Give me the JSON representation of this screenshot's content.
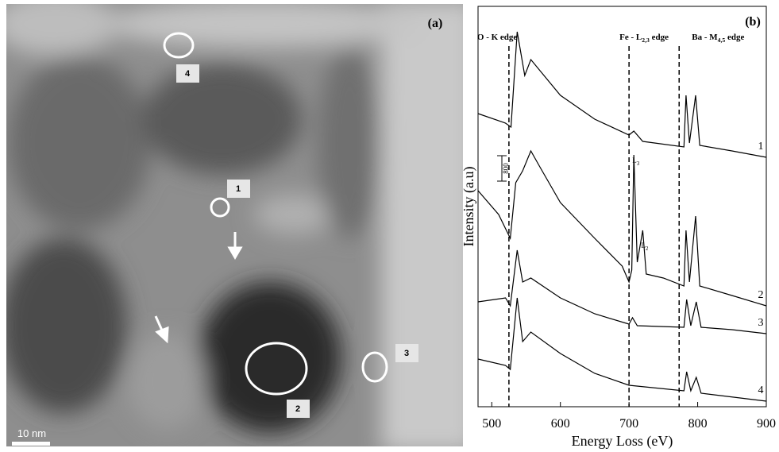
{
  "image_panel": {
    "label": "(a)",
    "markers": [
      "1",
      "2",
      "3",
      "4"
    ],
    "scale_bar_label": "10 nm"
  },
  "chart_data": {
    "type": "line",
    "panel_label": "(b)",
    "xlabel": "Energy Loss (eV)",
    "ylabel": "Intensity (a.u)",
    "xlim": [
      480,
      900
    ],
    "xticks": [
      500,
      600,
      700,
      800,
      900
    ],
    "ylim": [
      0,
      12600
    ],
    "scale_bar": 800,
    "edges": [
      {
        "x": 525,
        "label": "O - K  edge"
      },
      {
        "x": 700,
        "label": "Fe - L",
        "sub": "2,3",
        "after": " edge"
      },
      {
        "x": 773,
        "label": "Ba - M",
        "sub": "4,5",
        "after": "  edge"
      }
    ],
    "peak_labels": [
      {
        "x": 707,
        "label": "L",
        "sub": "3"
      },
      {
        "x": 720,
        "label": "L",
        "sub": "2"
      }
    ],
    "series": [
      {
        "name": "1",
        "color": "#000000",
        "x": [
          480,
          520,
          528,
          537,
          548,
          557,
          600,
          650,
          700,
          707,
          720,
          780,
          783,
          788,
          797,
          803,
          850,
          900
        ],
        "values": [
          9225,
          8925,
          8800,
          11800,
          10425,
          10925,
          9800,
          9050,
          8550,
          8675,
          8350,
          8175,
          9800,
          8300,
          9800,
          8225,
          8050,
          7850
        ]
      },
      {
        "name": "2",
        "color": "#000000",
        "x": [
          480,
          510,
          527,
          535,
          545,
          557,
          570,
          600,
          650,
          690,
          700,
          704,
          707,
          712,
          720,
          725,
          750,
          780,
          783,
          788,
          797,
          803,
          850,
          900
        ],
        "values": [
          6800,
          6050,
          5300,
          7050,
          7425,
          8050,
          7550,
          6425,
          5300,
          4425,
          3925,
          4300,
          7925,
          4550,
          5550,
          4175,
          4050,
          3800,
          5550,
          3925,
          6000,
          3800,
          3500,
          3175
        ]
      },
      {
        "name": "3",
        "color": "#000000",
        "x": [
          480,
          520,
          527,
          537,
          545,
          557,
          600,
          650,
          700,
          705,
          712,
          780,
          784,
          790,
          798,
          805,
          850,
          900
        ],
        "values": [
          3300,
          3425,
          3175,
          4925,
          3925,
          4050,
          3425,
          2925,
          2600,
          2800,
          2550,
          2500,
          3375,
          2550,
          3300,
          2500,
          2425,
          2300
        ]
      },
      {
        "name": "4",
        "color": "#000000",
        "x": [
          480,
          520,
          527,
          537,
          545,
          557,
          600,
          650,
          700,
          780,
          784,
          790,
          798,
          805,
          900
        ],
        "values": [
          1500,
          1300,
          1175,
          3425,
          2050,
          2350,
          1675,
          1050,
          675,
          500,
          1100,
          500,
          925,
          425,
          175
        ]
      }
    ]
  }
}
